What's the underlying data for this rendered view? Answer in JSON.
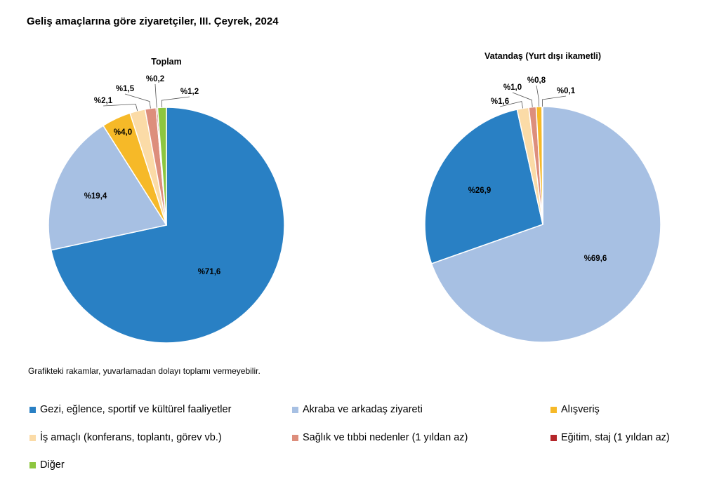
{
  "title": "Geliş amaçlarına göre ziyaretçiler, III. Çeyrek, 2024",
  "footnote": "Grafikteki rakamlar, yuvarlamadan dolayı toplamı vermeyebilir.",
  "colors": {
    "gezi": "#2980c4",
    "akraba": "#a7c0e3",
    "alisveris": "#f6b928",
    "is": "#fbdba7",
    "saglik": "#dd8e7c",
    "egitim": "#b4262a",
    "diger": "#8dc63f"
  },
  "chart_data": [
    {
      "type": "pie",
      "subtitle": "Toplam",
      "slices": [
        {
          "key": "gezi",
          "value": 71.6,
          "label": "%71,6"
        },
        {
          "key": "akraba",
          "value": 19.4,
          "label": "%19,4"
        },
        {
          "key": "alisveris",
          "value": 4.0,
          "label": "%4,0"
        },
        {
          "key": "is",
          "value": 2.1,
          "label": "%2,1"
        },
        {
          "key": "saglik",
          "value": 1.5,
          "label": "%1,5"
        },
        {
          "key": "egitim",
          "value": 0.2,
          "label": "%0,2"
        },
        {
          "key": "diger",
          "value": 1.2,
          "label": "%1,2"
        }
      ]
    },
    {
      "type": "pie",
      "subtitle": "Vatandaş (Yurt dışı ikametli)",
      "slices": [
        {
          "key": "akraba",
          "value": 69.6,
          "label": "%69,6"
        },
        {
          "key": "gezi",
          "value": 26.9,
          "label": "%26,9"
        },
        {
          "key": "is",
          "value": 1.6,
          "label": "%1,6"
        },
        {
          "key": "saglik",
          "value": 1.0,
          "label": "%1,0"
        },
        {
          "key": "alisveris",
          "value": 0.8,
          "label": "%0,8"
        },
        {
          "key": "egitim",
          "value": 0.1,
          "label": "%0,1"
        }
      ]
    }
  ],
  "legend": [
    {
      "key": "gezi",
      "label": "Gezi, eğlence, sportif ve kültürel faaliyetler"
    },
    {
      "key": "akraba",
      "label": "Akraba ve arkadaş ziyareti"
    },
    {
      "key": "alisveris",
      "label": "Alışveriş"
    },
    {
      "key": "is",
      "label": "İş amaçlı (konferans, toplantı, görev vb.)"
    },
    {
      "key": "saglik",
      "label": "Sağlık ve tıbbi nedenler (1 yıldan az)"
    },
    {
      "key": "egitim",
      "label": "Eğitim, staj (1 yıldan az)"
    },
    {
      "key": "diger",
      "label": "Diğer"
    }
  ]
}
